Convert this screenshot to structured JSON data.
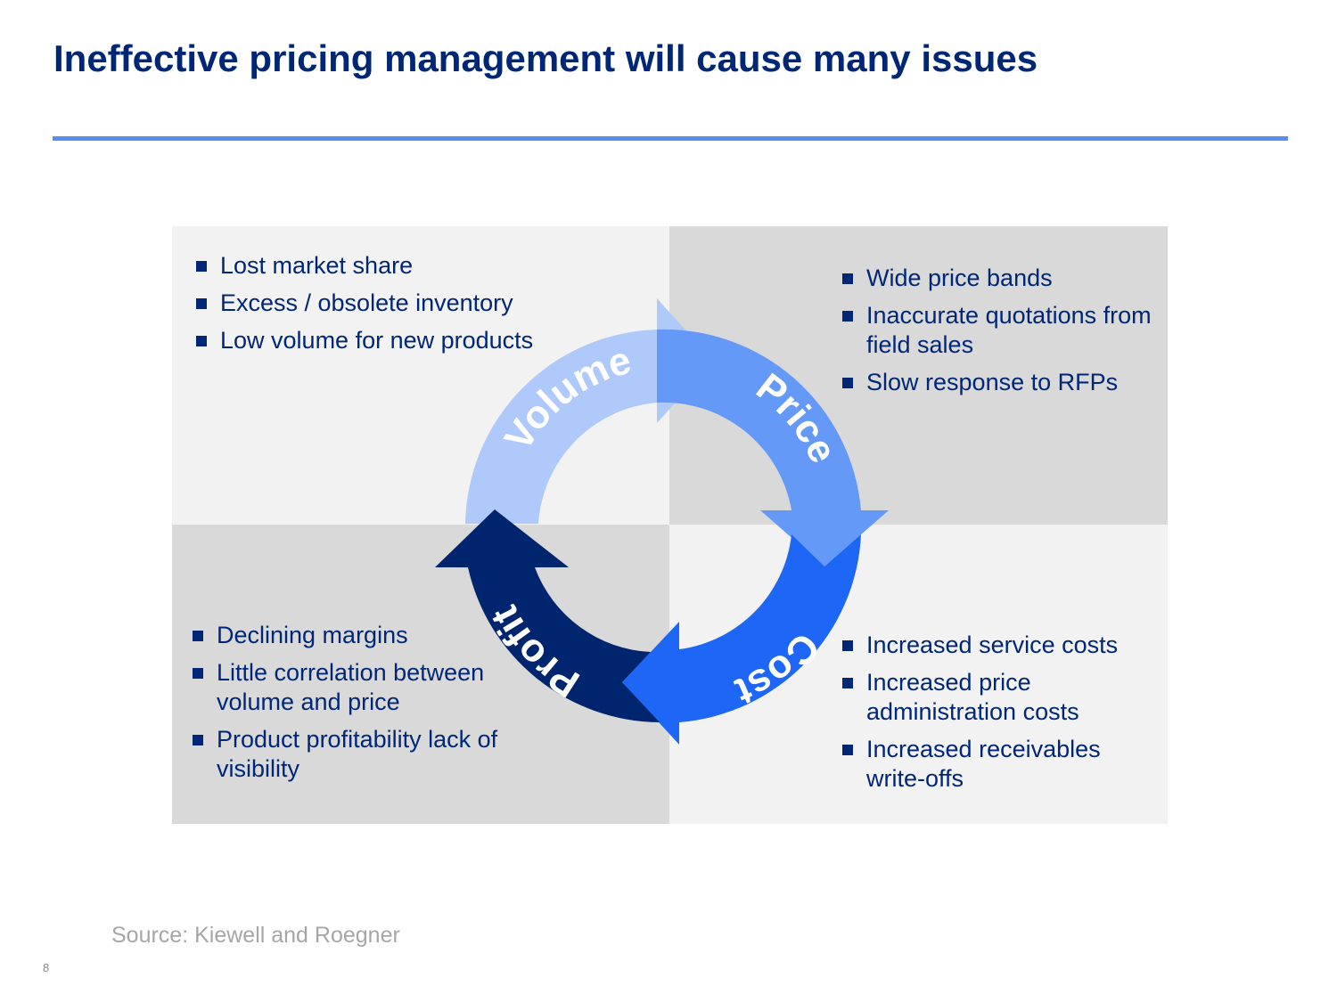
{
  "title": "Ineffective pricing management will cause many issues",
  "colors": {
    "title": "#002776",
    "rule": "#5b8def",
    "quad_light": "#f2f2f2",
    "quad_dark": "#d9d9d9",
    "volume_arrow": "#afc9fa",
    "price_arrow": "#6499f7",
    "cost_arrow": "#1e66f5",
    "profit_arrow": "#00256f"
  },
  "cycle": {
    "volume": "Volume",
    "price": "Price",
    "cost": "Cost",
    "profit": "Profit"
  },
  "quadrants": {
    "volume": {
      "bullets": [
        {
          "text": "Lost market share"
        },
        {
          "text": "Excess / obsolete inventory"
        },
        {
          "text": "Low volume for new products"
        }
      ]
    },
    "price": {
      "bullets": [
        {
          "text": "Wide price bands"
        },
        {
          "text": "Inaccurate quotations from field sales"
        },
        {
          "text": "Slow response to RFPs"
        }
      ]
    },
    "profit": {
      "bullets": [
        {
          "text": "Declining margins"
        },
        {
          "text": "Little correlation between volume and price"
        },
        {
          "text": "Product profitability lack of visibility"
        }
      ]
    },
    "cost": {
      "bullets": [
        {
          "text": "Increased service costs"
        },
        {
          "text": "Increased price administration costs"
        },
        {
          "text": "Increased receivables write-offs"
        }
      ]
    }
  },
  "source": "Source: Kiewell and Roegner",
  "page_number": "8"
}
